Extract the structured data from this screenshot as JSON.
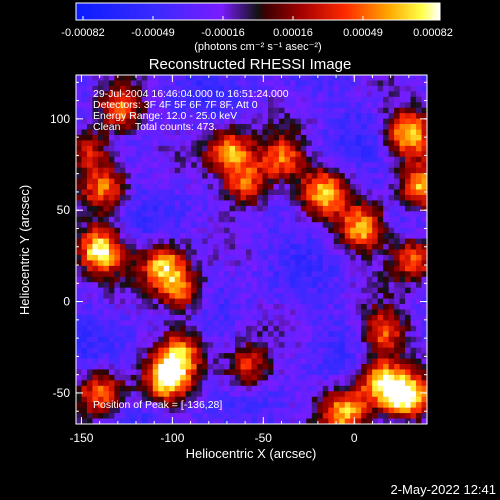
{
  "colorbar": {
    "tick_labels": [
      "-0.00082",
      "-0.00049",
      "-0.00016",
      "0.00016",
      "0.00049",
      "0.00082"
    ],
    "unit_label": "(photons cm⁻² s⁻¹ asec⁻²)",
    "range": [
      -0.00082,
      0.00082
    ]
  },
  "plot": {
    "title": "Reconstructed RHESSI Image",
    "xlabel": "Heliocentric X (arcsec)",
    "ylabel": "Heliocentric Y (arcsec)",
    "x_ticks": [
      "-150",
      "-100",
      "-50",
      "0"
    ],
    "y_ticks": [
      "-50",
      "0",
      "50",
      "100"
    ],
    "xlim": [
      -153,
      40
    ],
    "ylim": [
      -67,
      124
    ]
  },
  "annotations": {
    "line1": "29-Jul-2004 16:46:04.000 to 16:51:24.000",
    "line2": "Detectors: 3F 4F 5F 6F 7F 8F, Att 0",
    "line3": "Energy Range: 12.0 - 25.0 keV",
    "line4": "Clean     Total counts: 473.",
    "peak": "Position of Peak = [-136,28]"
  },
  "footer": {
    "timestamp": "2-May-2022 12:41"
  },
  "chart_data": {
    "type": "heatmap",
    "title": "Reconstructed RHESSI Image",
    "xlabel": "Heliocentric X (arcsec)",
    "ylabel": "Heliocentric Y (arcsec)",
    "xlim": [
      -153,
      40
    ],
    "ylim": [
      -67,
      124
    ],
    "colormap": "blue-purple-red-yellow-white",
    "zlim": [
      -0.00082,
      0.00082
    ],
    "peak_position": [
      -136,
      28
    ],
    "hotspots": [
      {
        "x": -140,
        "y": 28,
        "level": 0.0008
      },
      {
        "x": -129,
        "y": 105,
        "level": 0.00055
      },
      {
        "x": -137,
        "y": 62,
        "level": 0.0004
      },
      {
        "x": -105,
        "y": 20,
        "level": 0.00062
      },
      {
        "x": -95,
        "y": 5,
        "level": 0.00045
      },
      {
        "x": -68,
        "y": 82,
        "level": 0.0006
      },
      {
        "x": -59,
        "y": 64,
        "level": 0.00052
      },
      {
        "x": -40,
        "y": 78,
        "level": 0.0005
      },
      {
        "x": -17,
        "y": 60,
        "level": 0.00055
      },
      {
        "x": 5,
        "y": 40,
        "level": 0.00062
      },
      {
        "x": 30,
        "y": 92,
        "level": 0.00072
      },
      {
        "x": 37,
        "y": 62,
        "level": 0.00055
      },
      {
        "x": 33,
        "y": 24,
        "level": 0.0005
      },
      {
        "x": 29,
        "y": -53,
        "level": 0.0008
      },
      {
        "x": 14,
        "y": -44,
        "level": 0.00065
      },
      {
        "x": -5,
        "y": -61,
        "level": 0.00055
      },
      {
        "x": 16,
        "y": -17,
        "level": 0.00045
      },
      {
        "x": -103,
        "y": -43,
        "level": 0.00065
      },
      {
        "x": -95,
        "y": -28,
        "level": 0.00045
      },
      {
        "x": -59,
        "y": -37,
        "level": 0.0004
      },
      {
        "x": -139,
        "y": -50,
        "level": 0.00045
      },
      {
        "x": -146,
        "y": 84,
        "level": 0.00035
      }
    ]
  }
}
